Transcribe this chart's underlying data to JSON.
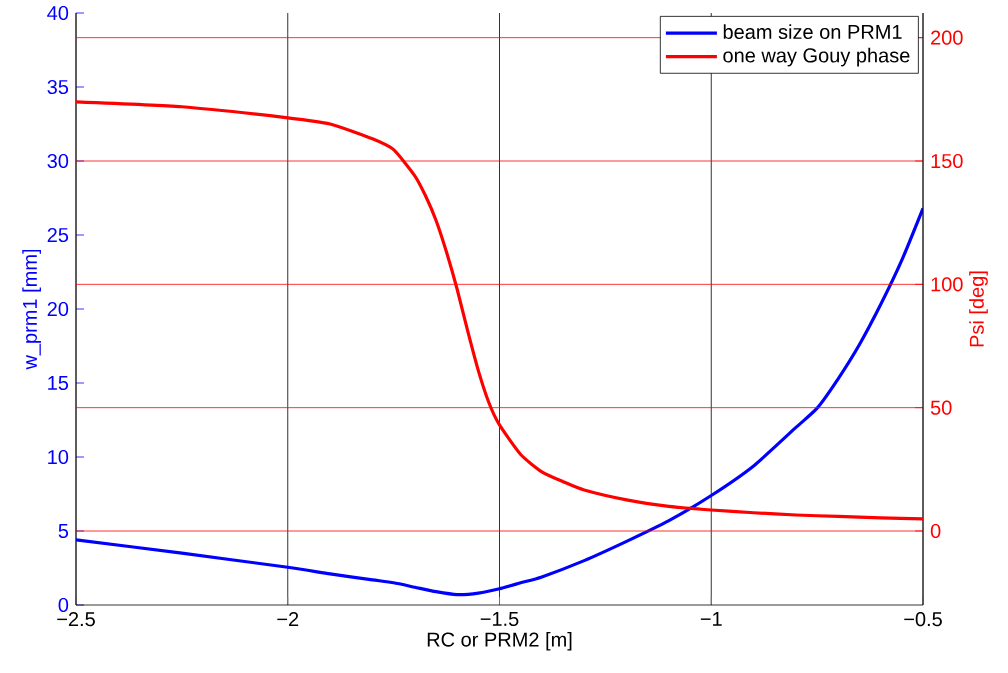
{
  "chart_data": {
    "type": "line",
    "xlabel": "RC or PRM2 [m]",
    "ylabel": "w_prm1 [mm]",
    "y2label": "Psi [deg]",
    "xlim": [
      -2.5,
      -0.5
    ],
    "xticks": [
      {
        "value": -2.5,
        "label": "−2.5"
      },
      {
        "value": -2,
        "label": "−2"
      },
      {
        "value": -1.5,
        "label": "−1.5"
      },
      {
        "value": -1,
        "label": "−1"
      },
      {
        "value": -0.5,
        "label": "−0.5"
      }
    ],
    "ylim": [
      0,
      40
    ],
    "yticks": [
      0,
      5,
      10,
      15,
      20,
      25,
      30,
      35,
      40
    ],
    "y2lim": [
      -30,
      210
    ],
    "y2ticks": [
      0,
      50,
      100,
      150,
      200
    ],
    "grid": true,
    "legend": "top right",
    "line_style": "solid",
    "marker": "none",
    "series": [
      {
        "name": "beam size on PRM1",
        "color": "#0000ff",
        "x": [
          -2.5,
          -2.25,
          -2.0,
          -1.9,
          -1.8,
          -1.75,
          -1.7,
          -1.65,
          -1.6,
          -1.55,
          -1.5,
          -1.45,
          -1.4,
          -1.3,
          -1.2,
          -1.1,
          -1.0,
          -0.9,
          -0.8,
          -0.75,
          -0.7,
          -0.65,
          -0.6,
          -0.55,
          -0.5
        ],
        "values": [
          4.4,
          3.5,
          2.55,
          2.1,
          1.7,
          1.5,
          1.2,
          0.9,
          0.7,
          0.8,
          1.1,
          1.5,
          1.9,
          3.0,
          4.3,
          5.7,
          7.4,
          9.4,
          12.0,
          13.3,
          15.3,
          17.6,
          20.3,
          23.3,
          26.8
        ]
      },
      {
        "name": "one way Gouy phase",
        "color": "#ff0000",
        "axis": "y2",
        "x": [
          -2.5,
          -2.25,
          -2.0,
          -1.9,
          -1.8,
          -1.75,
          -1.7,
          -1.675,
          -1.65,
          -1.625,
          -1.6,
          -1.575,
          -1.55,
          -1.525,
          -1.5,
          -1.45,
          -1.4,
          -1.35,
          -1.3,
          -1.2,
          -1.1,
          -1.0,
          -0.9,
          -0.8,
          -0.7,
          -0.6,
          -0.5
        ],
        "values": [
          174,
          172,
          167.5,
          165,
          159,
          154.6,
          144,
          136,
          126,
          113,
          98,
          81,
          65,
          52,
          43,
          31,
          24,
          20,
          16.6,
          12.6,
          10,
          8.5,
          7.4,
          6.5,
          5.9,
          5.3,
          4.9
        ]
      }
    ]
  }
}
